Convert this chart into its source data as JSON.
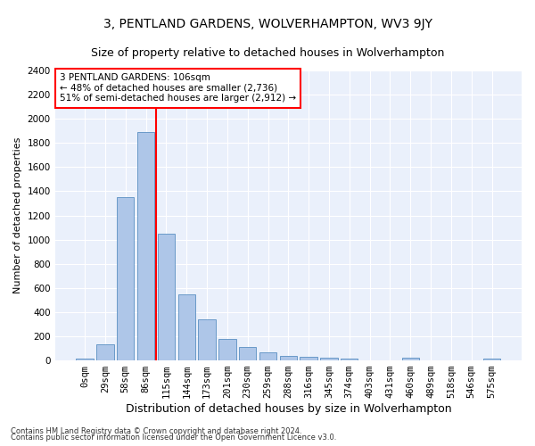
{
  "title": "3, PENTLAND GARDENS, WOLVERHAMPTON, WV3 9JY",
  "subtitle": "Size of property relative to detached houses in Wolverhampton",
  "xlabel": "Distribution of detached houses by size in Wolverhampton",
  "ylabel": "Number of detached properties",
  "bar_labels": [
    "0sqm",
    "29sqm",
    "58sqm",
    "86sqm",
    "115sqm",
    "144sqm",
    "173sqm",
    "201sqm",
    "230sqm",
    "259sqm",
    "288sqm",
    "316sqm",
    "345sqm",
    "374sqm",
    "403sqm",
    "431sqm",
    "460sqm",
    "489sqm",
    "518sqm",
    "546sqm",
    "575sqm"
  ],
  "bar_values": [
    15,
    130,
    1350,
    1890,
    1050,
    550,
    340,
    175,
    115,
    65,
    40,
    30,
    25,
    15,
    0,
    0,
    20,
    0,
    0,
    0,
    15
  ],
  "bar_color": "#aec6e8",
  "bar_edge_color": "#5a8fc2",
  "vline_x_index": 4,
  "vline_color": "red",
  "annotation_text": "3 PENTLAND GARDENS: 106sqm\n← 48% of detached houses are smaller (2,736)\n51% of semi-detached houses are larger (2,912) →",
  "annotation_box_color": "white",
  "annotation_box_edgecolor": "red",
  "ylim": [
    0,
    2400
  ],
  "yticks": [
    0,
    200,
    400,
    600,
    800,
    1000,
    1200,
    1400,
    1600,
    1800,
    2000,
    2200,
    2400
  ],
  "footer_line1": "Contains HM Land Registry data © Crown copyright and database right 2024.",
  "footer_line2": "Contains public sector information licensed under the Open Government Licence v3.0.",
  "bg_color": "#eaf0fb",
  "grid_color": "white",
  "title_fontsize": 10,
  "subtitle_fontsize": 9,
  "ylabel_fontsize": 8,
  "xlabel_fontsize": 9,
  "tick_fontsize": 7.5,
  "annotation_fontsize": 7.5,
  "footer_fontsize": 6
}
